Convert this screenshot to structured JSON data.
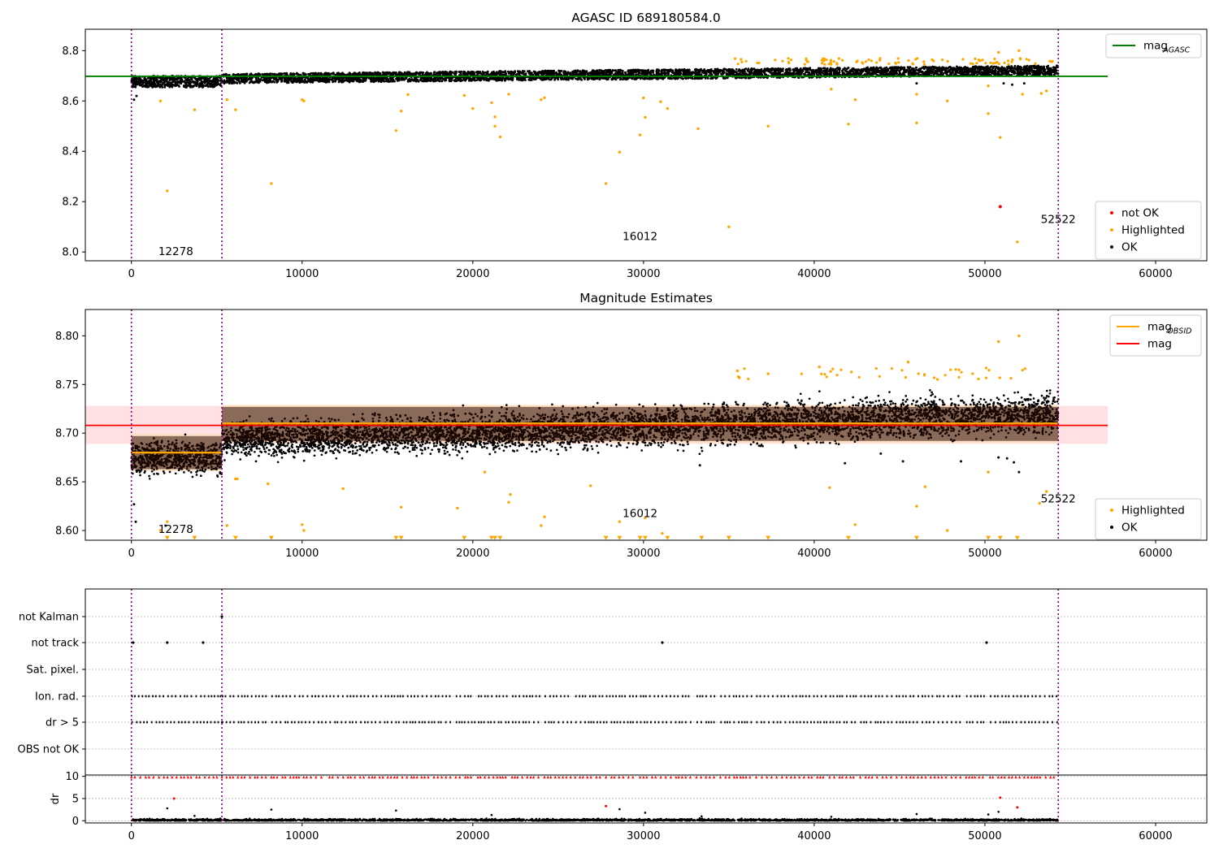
{
  "chart_data": [
    {
      "type": "scatter",
      "title": "AGASC ID 689180584.0",
      "xlim": [
        -2700,
        63000
      ],
      "ylim": [
        7.965,
        8.885
      ],
      "xticks": [
        0,
        10000,
        20000,
        30000,
        40000,
        50000,
        60000
      ],
      "yticks": [
        8.0,
        8.2,
        8.4,
        8.6,
        8.8
      ],
      "ytick_labels": [
        "8.0",
        "8.2",
        "8.4",
        "8.6",
        "8.8"
      ],
      "colors": {
        "ok": "#000000",
        "highlighted": "#ffa500",
        "not_ok": "#ff0000",
        "agasc_line": "#008000",
        "vlines": "#800080"
      },
      "band": {
        "x0": 0,
        "x1": 54300,
        "center_start": 8.685,
        "center_end": 8.722,
        "halfwidth": 0.02,
        "early_end": 5300,
        "early_center": 8.677,
        "early_halfwidth": 0.024
      },
      "ok_points": [
        [
          300,
          8.62
        ],
        [
          150,
          8.605
        ],
        [
          52300,
          8.67
        ],
        [
          51100,
          8.67
        ],
        [
          51600,
          8.665
        ],
        [
          46000,
          8.67
        ]
      ],
      "highlighted_points": [
        [
          1700,
          8.6
        ],
        [
          2100,
          8.243
        ],
        [
          3700,
          8.565
        ],
        [
          5600,
          8.605
        ],
        [
          6100,
          8.565
        ],
        [
          8200,
          8.272
        ],
        [
          10000,
          8.605
        ],
        [
          10100,
          8.6
        ],
        [
          15500,
          8.482
        ],
        [
          15800,
          8.56
        ],
        [
          16200,
          8.625
        ],
        [
          19500,
          8.622
        ],
        [
          20000,
          8.57
        ],
        [
          21100,
          8.593
        ],
        [
          21300,
          8.537
        ],
        [
          21300,
          8.5
        ],
        [
          21600,
          8.457
        ],
        [
          22100,
          8.627
        ],
        [
          24000,
          8.605
        ],
        [
          24200,
          8.613
        ],
        [
          27800,
          8.272
        ],
        [
          28600,
          8.397
        ],
        [
          29800,
          8.465
        ],
        [
          30000,
          8.612
        ],
        [
          30100,
          8.535
        ],
        [
          31000,
          8.597
        ],
        [
          31400,
          8.57
        ],
        [
          33200,
          8.49
        ],
        [
          35000,
          8.1
        ],
        [
          37300,
          8.5
        ],
        [
          41000,
          8.647
        ],
        [
          42000,
          8.508
        ],
        [
          42400,
          8.605
        ],
        [
          46000,
          8.513
        ],
        [
          46000,
          8.627
        ],
        [
          47800,
          8.6
        ],
        [
          50200,
          8.55
        ],
        [
          50200,
          8.66
        ],
        [
          50900,
          8.455
        ],
        [
          51900,
          8.04
        ],
        [
          52200,
          8.627
        ],
        [
          53300,
          8.63
        ],
        [
          53600,
          8.64
        ],
        [
          50800,
          8.793
        ],
        [
          52000,
          8.8
        ]
      ],
      "not_ok_points": [
        [
          50900,
          8.18
        ]
      ],
      "agasc_mag": 8.698,
      "agasc_line_x": [
        -2700,
        57200
      ],
      "vlines": [
        0,
        5300,
        54300
      ],
      "annotations": [
        {
          "text": "12278",
          "x": 2600,
          "y": 8.0
        },
        {
          "text": "16012",
          "x": 29800,
          "y": 8.06
        },
        {
          "text": "52522",
          "x": 54300,
          "y": 8.128
        }
      ],
      "legends": [
        {
          "position": "upper-right",
          "entries": [
            {
              "label": "mag",
              "subscript": "AGASC",
              "kind": "line",
              "color": "#008000"
            }
          ]
        },
        {
          "position": "lower-right",
          "entries": [
            {
              "label": "not OK",
              "kind": "dot",
              "color": "#ff0000"
            },
            {
              "label": "Highlighted",
              "kind": "dot",
              "color": "#ffa500"
            },
            {
              "label": "OK",
              "kind": "dot",
              "color": "#000000"
            }
          ]
        }
      ]
    },
    {
      "type": "scatter",
      "title": "Magnitude Estimates",
      "xlim": [
        -2700,
        63000
      ],
      "ylim": [
        8.59,
        8.827
      ],
      "xticks": [
        0,
        10000,
        20000,
        30000,
        40000,
        50000,
        60000
      ],
      "yticks": [
        8.6,
        8.65,
        8.7,
        8.75,
        8.8
      ],
      "ytick_labels": [
        "8.60",
        "8.65",
        "8.70",
        "8.75",
        "8.80"
      ],
      "colors": {
        "ok": "#000000",
        "highlighted": "#ffa500",
        "mag_line": "#ff0000",
        "obsid_line": "#ffa500",
        "mag_band": "#ffdde0",
        "obsid_band": "#ffe0c0"
      },
      "mag": 8.708,
      "mag_band": [
        8.689,
        8.728
      ],
      "mag_line_x": [
        -2700,
        57200
      ],
      "obsid_segments": [
        {
          "x": [
            0,
            5300
          ],
          "mag": 8.68,
          "band": [
            8.661,
            8.699
          ]
        },
        {
          "x": [
            5300,
            54300
          ],
          "mag": 8.71,
          "band": [
            8.69,
            8.729
          ]
        }
      ],
      "ok_points": [
        [
          150,
          8.627
        ],
        [
          250,
          8.609
        ],
        [
          2000,
          8.605
        ],
        [
          33300,
          8.667
        ],
        [
          41800,
          8.669
        ],
        [
          43900,
          8.679
        ],
        [
          45200,
          8.671
        ],
        [
          48600,
          8.671
        ],
        [
          50800,
          8.675
        ],
        [
          51300,
          8.674
        ],
        [
          51700,
          8.67
        ],
        [
          52000,
          8.66
        ]
      ],
      "highlighted_points": [
        [
          1700,
          8.6
        ],
        [
          2100,
          8.609
        ],
        [
          5600,
          8.605
        ],
        [
          6100,
          8.653
        ],
        [
          6200,
          8.653
        ],
        [
          8000,
          8.648
        ],
        [
          10000,
          8.606
        ],
        [
          10100,
          8.6
        ],
        [
          12400,
          8.643
        ],
        [
          15800,
          8.624
        ],
        [
          19100,
          8.623
        ],
        [
          20700,
          8.66
        ],
        [
          22100,
          8.629
        ],
        [
          22200,
          8.637
        ],
        [
          24000,
          8.605
        ],
        [
          24200,
          8.614
        ],
        [
          26900,
          8.646
        ],
        [
          28600,
          8.609
        ],
        [
          30100,
          8.613
        ],
        [
          31100,
          8.597
        ],
        [
          40900,
          8.644
        ],
        [
          42400,
          8.606
        ],
        [
          46000,
          8.625
        ],
        [
          46500,
          8.645
        ],
        [
          47800,
          8.6
        ],
        [
          50200,
          8.66
        ],
        [
          53600,
          8.64
        ],
        [
          53200,
          8.628
        ],
        [
          50800,
          8.794
        ],
        [
          52000,
          8.8
        ],
        [
          45500,
          8.773
        ],
        [
          40300,
          8.768
        ],
        [
          35500,
          8.764
        ],
        [
          37300,
          8.761
        ]
      ],
      "triangles_x": [
        2100,
        3700,
        6100,
        8200,
        15500,
        15800,
        19500,
        21100,
        21300,
        21600,
        27800,
        28600,
        29800,
        30100,
        31400,
        33400,
        35000,
        37300,
        42000,
        46000,
        50200,
        50900,
        51900
      ],
      "triangle_y": 8.592,
      "vlines": [
        0,
        5300,
        54300
      ],
      "annotations": [
        {
          "text": "12278",
          "x": 2600,
          "y": 8.601
        },
        {
          "text": "16012",
          "x": 29800,
          "y": 8.617
        },
        {
          "text": "52522",
          "x": 54300,
          "y": 8.632
        }
      ],
      "legends": [
        {
          "position": "upper-right",
          "entries": [
            {
              "label": "mag",
              "subscript": "OBSID",
              "kind": "line",
              "color": "#ffa500"
            },
            {
              "label": "mag",
              "kind": "line",
              "color": "#ff0000"
            }
          ]
        },
        {
          "position": "lower-right",
          "entries": [
            {
              "label": "Highlighted",
              "kind": "dot",
              "color": "#ffa500"
            },
            {
              "label": "OK",
              "kind": "dot",
              "color": "#000000"
            }
          ]
        }
      ]
    },
    {
      "type": "scatter",
      "title": "",
      "xlim": [
        -2700,
        63000
      ],
      "xticks": [
        0,
        10000,
        20000,
        30000,
        40000,
        50000,
        60000
      ],
      "flags": [
        "not Kalman",
        "not track",
        "Sat. pixel.",
        "Ion. rad.",
        "dr > 5",
        "OBS not OK"
      ],
      "flag_points": {
        "not Kalman": [
          5300
        ],
        "not track": [
          100,
          2100,
          4200,
          31100,
          50100
        ],
        "Sat. pixel.": [],
        "Ion. rad.": [],
        "dr > 5": [],
        "OBS not OK": []
      },
      "flag_segments": {
        "Ion. rad.": [
          [
            0,
            5300
          ],
          [
            5300,
            8000
          ],
          [
            8200,
            11400
          ],
          [
            11600,
            13200
          ],
          [
            13400,
            15100
          ],
          [
            15200,
            16900
          ],
          [
            17000,
            18800
          ],
          [
            19000,
            20100
          ],
          [
            20300,
            22100
          ],
          [
            22300,
            23900
          ],
          [
            24200,
            25800
          ],
          [
            26000,
            27700
          ],
          [
            27800,
            29600
          ],
          [
            29800,
            31100
          ],
          [
            31300,
            32800
          ],
          [
            33100,
            34300
          ],
          [
            34500,
            36400
          ],
          [
            36600,
            37600
          ],
          [
            37800,
            40700
          ],
          [
            40900,
            42500
          ],
          [
            42700,
            44300
          ],
          [
            44500,
            46100
          ],
          [
            46300,
            48700
          ],
          [
            48900,
            50100
          ],
          [
            50300,
            52100
          ],
          [
            52300,
            54300
          ]
        ],
        "dr > 5": [
          [
            0,
            5300
          ],
          [
            5300,
            8000
          ],
          [
            8200,
            11400
          ],
          [
            11600,
            13200
          ],
          [
            13400,
            15100
          ],
          [
            15200,
            16900
          ],
          [
            17000,
            18800
          ],
          [
            19000,
            20100
          ],
          [
            20300,
            22100
          ],
          [
            22300,
            23900
          ],
          [
            24200,
            25800
          ],
          [
            26000,
            27700
          ],
          [
            27800,
            29600
          ],
          [
            29800,
            31100
          ],
          [
            31300,
            32800
          ],
          [
            33100,
            34300
          ],
          [
            34500,
            36400
          ],
          [
            36600,
            37600
          ],
          [
            37800,
            40700
          ],
          [
            40900,
            42500
          ],
          [
            42700,
            44300
          ],
          [
            44500,
            46100
          ],
          [
            46300,
            48700
          ],
          [
            48900,
            50100
          ],
          [
            50300,
            52100
          ],
          [
            52300,
            54300
          ]
        ]
      },
      "vlines": [
        0,
        5300,
        54300
      ]
    },
    {
      "type": "scatter",
      "title": "",
      "ylabel": "dr",
      "xlim": [
        -2700,
        63000
      ],
      "ylim": [
        -0.5,
        10.3
      ],
      "xticks": [
        0,
        10000,
        20000,
        30000,
        40000,
        50000,
        60000
      ],
      "xtick_labels": [
        "0",
        "10000",
        "20000",
        "30000",
        "40000",
        "50000",
        "60000"
      ],
      "yticks": [
        0,
        5,
        10
      ],
      "ytick_labels": [
        "0",
        "5",
        "10"
      ],
      "colors": {
        "ok": "#000000",
        "capped": "#ff0000"
      },
      "ok_points": [
        [
          2100,
          2.8
        ],
        [
          8200,
          2.5
        ],
        [
          15500,
          2.3
        ],
        [
          28600,
          2.6
        ],
        [
          30100,
          1.8
        ],
        [
          33400,
          1.0
        ],
        [
          46000,
          1.5
        ],
        [
          50200,
          1.4
        ],
        [
          50800,
          2.0
        ],
        [
          3700,
          1.1
        ],
        [
          21100,
          1.3
        ],
        [
          41000,
          0.9
        ]
      ],
      "red_points": [
        [
          2500,
          5.0
        ],
        [
          27800,
          3.3
        ],
        [
          50900,
          5.2
        ],
        [
          51900,
          3.0
        ]
      ],
      "capped_value": 9.8,
      "vlines": [
        0,
        5300,
        54300
      ]
    }
  ],
  "legend_text": {
    "mag": "mag",
    "agasc_sub": "AGASC",
    "obsid_sub": "OBSID",
    "not_ok": "not OK",
    "highlighted": "Highlighted",
    "ok": "OK"
  }
}
